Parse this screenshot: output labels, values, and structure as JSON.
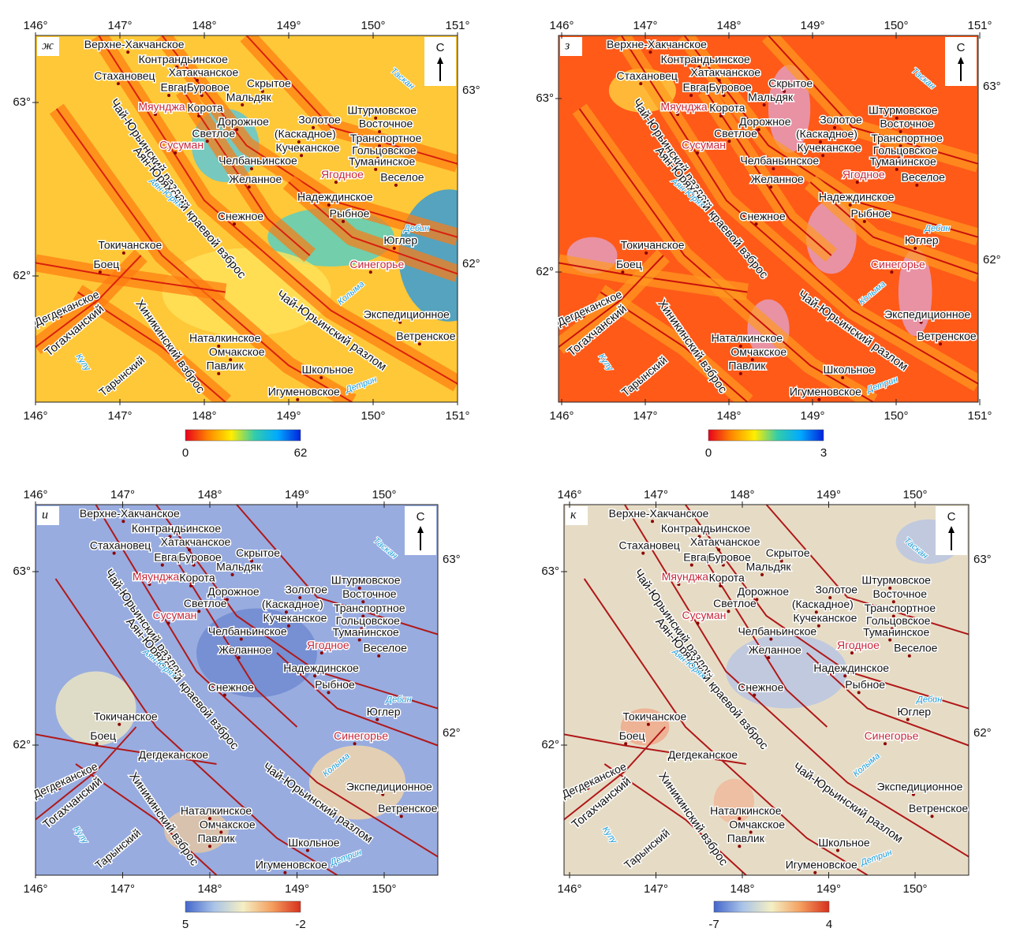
{
  "places": [
    "Верхне-Хакчанское",
    "Контрандьинское",
    "Хатакчанское",
    "Стахановец",
    "Евгар",
    "Буровое",
    "Скрытое",
    "Мальдяк",
    "Мяунджа",
    "Корота",
    "Штурмовское",
    "Дорожное",
    "Золотое",
    "Восточное",
    "Светлое",
    "(Каскадное)",
    "Транспортное",
    "Сусуман",
    "Кучеканское",
    "Гольцовское",
    "Челбаньинское",
    "Туманинское",
    "Ягодное",
    "Веселое",
    "Желанное",
    "Надеждинское",
    "Снежное",
    "Рыбное",
    "Юглер",
    "Токичанское",
    "Синегорье",
    "Боец",
    "Дегдеканское",
    "Экспедиционное",
    "Ветренское",
    "Наталкинское",
    "Омчакское",
    "Павлик",
    "Школьное",
    "Игуменовское",
    "Тарынский"
  ],
  "faults": [
    "Чай-Юрьинский разлом",
    "Аян-Юряхский краевой взброс",
    "Чай-Юрьинский разлом",
    "Тогахчанский",
    "Хиникинский взброс"
  ],
  "rivers": [
    "Таскан",
    "Аян-Юрях",
    "Дебин",
    "Колыма",
    "Кулу",
    "Детрин"
  ],
  "north": "С",
  "panels": [
    {
      "letter": "ж",
      "xticks": [
        {
          "value": 146,
          "label": "146°"
        },
        {
          "value": 147,
          "label": "147°"
        },
        {
          "value": 148,
          "label": "148°"
        },
        {
          "value": 149,
          "label": "149°"
        },
        {
          "value": 150,
          "label": "150°"
        },
        {
          "value": 151,
          "label": "151°"
        }
      ],
      "yticks": [
        {
          "value": 63,
          "label": "63°"
        },
        {
          "value": 62,
          "label": "62°"
        }
      ],
      "colorbar": {
        "min": 0,
        "max": 62,
        "colors": [
          "#e8001c",
          "#ff8800",
          "#ffee00",
          "#33ccaa",
          "#00aaff",
          "#0022dd"
        ]
      }
    },
    {
      "letter": "з",
      "xticks": [
        {
          "value": 146,
          "label": "146°"
        },
        {
          "value": 147,
          "label": "147°"
        },
        {
          "value": 148,
          "label": "148°"
        },
        {
          "value": 149,
          "label": "149°"
        },
        {
          "value": 150,
          "label": "150°"
        },
        {
          "value": 151,
          "label": "151°"
        }
      ],
      "yticks": [
        {
          "value": 63,
          "label": "63°"
        },
        {
          "value": 62,
          "label": "62°"
        }
      ],
      "colorbar": {
        "min": 0,
        "max": 3,
        "colors": [
          "#e8001c",
          "#ff8800",
          "#ffee00",
          "#33ccaa",
          "#00aaff",
          "#0022dd"
        ]
      }
    },
    {
      "letter": "и",
      "xticks": [
        {
          "value": 146,
          "label": "146°"
        },
        {
          "value": 147,
          "label": "147°"
        },
        {
          "value": 148,
          "label": "148°"
        },
        {
          "value": 149,
          "label": "149°"
        },
        {
          "value": 150,
          "label": "150°"
        }
      ],
      "yticks": [
        {
          "value": 63,
          "label": "63°"
        },
        {
          "value": 62,
          "label": "62°"
        }
      ],
      "colorbar": {
        "min": 5,
        "max": -2,
        "colors": [
          "#4466cc",
          "#aac4e8",
          "#f4efc4",
          "#f4a060",
          "#d8301c"
        ]
      }
    },
    {
      "letter": "к",
      "xticks": [
        {
          "value": 146,
          "label": "146°"
        },
        {
          "value": 147,
          "label": "147°"
        },
        {
          "value": 148,
          "label": "148°"
        },
        {
          "value": 149,
          "label": "149°"
        },
        {
          "value": 150,
          "label": "150°"
        }
      ],
      "yticks": [
        {
          "value": 63,
          "label": "63°"
        },
        {
          "value": 62,
          "label": "62°"
        }
      ],
      "colorbar": {
        "min": -7,
        "max": 4,
        "colors": [
          "#4466cc",
          "#aac4e8",
          "#f4efc4",
          "#f4a060",
          "#d8301c"
        ]
      }
    }
  ]
}
